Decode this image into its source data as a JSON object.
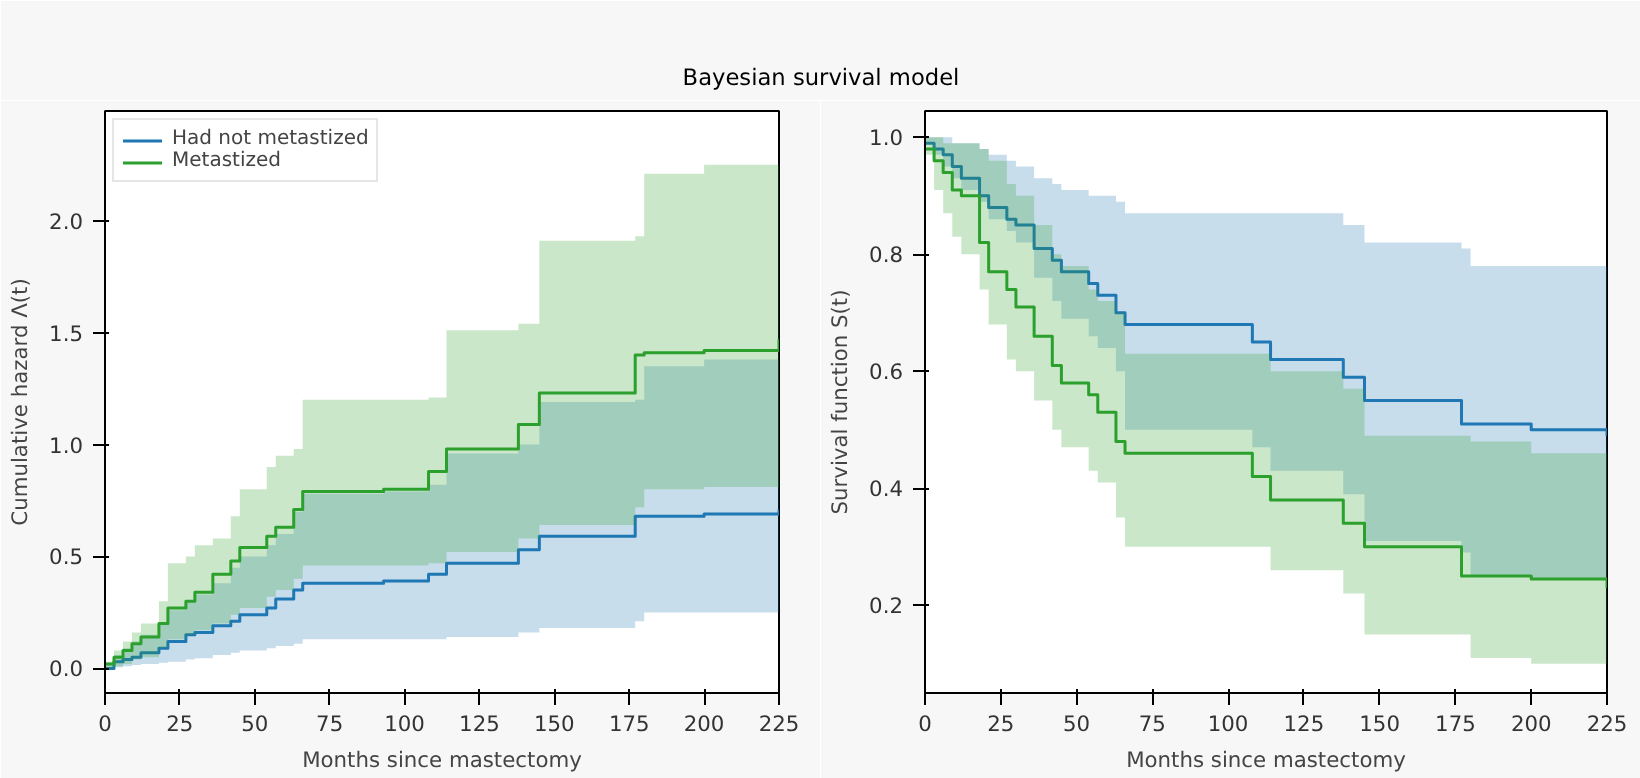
{
  "chart_data": [
    {
      "type": "step",
      "title": "Bayesian survival model",
      "xlabel": "Months since mastectomy",
      "ylabel": "Cumulative hazard Λ(t)",
      "x": [
        0,
        3,
        6,
        9,
        12,
        18,
        21,
        27,
        30,
        36,
        42,
        45,
        54,
        57,
        63,
        66,
        93,
        108,
        114,
        138,
        145,
        177,
        180,
        200,
        225
      ],
      "xlim": [
        0,
        225
      ],
      "xticks": [
        0,
        25,
        50,
        75,
        100,
        125,
        150,
        175,
        200,
        225
      ],
      "ylim": [
        -0.11,
        2.49
      ],
      "yticks": [
        {
          "value": 0,
          "label": "0.0"
        },
        0.5,
        {
          "value": 1,
          "label": "1.0"
        },
        1.5,
        {
          "value": 2,
          "label": "2.0"
        }
      ],
      "grid": false,
      "legend": "top left",
      "series": [
        {
          "name": "Had not metastized",
          "color": "#1f77b4",
          "values": [
            0.0,
            0.03,
            0.04,
            0.05,
            0.07,
            0.09,
            0.12,
            0.15,
            0.16,
            0.19,
            0.21,
            0.24,
            0.27,
            0.31,
            0.35,
            0.38,
            0.39,
            0.42,
            0.47,
            0.53,
            0.59,
            0.68,
            0.68,
            0.69,
            0.71
          ],
          "lower": [
            0,
            0.005,
            0.01,
            0.015,
            0.02,
            0.025,
            0.03,
            0.04,
            0.045,
            0.06,
            0.07,
            0.08,
            0.09,
            0.1,
            0.11,
            0.13,
            0.13,
            0.13,
            0.14,
            0.16,
            0.18,
            0.21,
            0.25,
            0.25,
            0.25
          ],
          "upper": [
            0.02,
            0.06,
            0.09,
            0.12,
            0.15,
            0.2,
            0.26,
            0.3,
            0.33,
            0.38,
            0.45,
            0.5,
            0.55,
            0.6,
            0.7,
            0.78,
            0.79,
            0.82,
            0.96,
            1.0,
            1.19,
            1.2,
            1.35,
            1.38,
            1.43
          ]
        },
        {
          "name": "Metastized",
          "color": "#2ca02c",
          "values": [
            0.02,
            0.05,
            0.08,
            0.11,
            0.14,
            0.2,
            0.27,
            0.3,
            0.34,
            0.42,
            0.48,
            0.54,
            0.59,
            0.63,
            0.71,
            0.79,
            0.8,
            0.88,
            0.98,
            1.09,
            1.23,
            1.4,
            1.41,
            1.42,
            1.47
          ],
          "lower": [
            0,
            0.01,
            0.02,
            0.04,
            0.05,
            0.09,
            0.13,
            0.15,
            0.17,
            0.2,
            0.24,
            0.27,
            0.32,
            0.35,
            0.4,
            0.46,
            0.46,
            0.47,
            0.52,
            0.58,
            0.64,
            0.72,
            0.8,
            0.81,
            0.82
          ],
          "upper": [
            0.03,
            0.08,
            0.12,
            0.16,
            0.2,
            0.3,
            0.47,
            0.5,
            0.55,
            0.58,
            0.68,
            0.8,
            0.9,
            0.95,
            0.98,
            1.2,
            1.2,
            1.21,
            1.51,
            1.54,
            1.91,
            1.93,
            2.21,
            2.25,
            2.37
          ]
        }
      ]
    },
    {
      "type": "step",
      "xlabel": "Months since mastectomy",
      "ylabel": "Survival function S(t)",
      "x": [
        0,
        3,
        6,
        9,
        12,
        18,
        21,
        27,
        30,
        36,
        42,
        45,
        54,
        57,
        63,
        66,
        93,
        108,
        114,
        138,
        145,
        177,
        180,
        200,
        225
      ],
      "xlim": [
        0,
        225
      ],
      "xticks": [
        0,
        25,
        50,
        75,
        100,
        125,
        150,
        175,
        200,
        225
      ],
      "ylim": [
        0.05,
        1.045
      ],
      "yticks": [
        0.2,
        0.4,
        0.6,
        0.8,
        {
          "value": 1,
          "label": "1.0"
        }
      ],
      "grid": false,
      "legend": false,
      "series": [
        {
          "color": "#1f77b4",
          "values": [
            0.99,
            0.98,
            0.97,
            0.95,
            0.93,
            0.9,
            0.88,
            0.86,
            0.85,
            0.81,
            0.79,
            0.77,
            0.75,
            0.73,
            0.7,
            0.68,
            0.68,
            0.65,
            0.62,
            0.59,
            0.55,
            0.51,
            0.51,
            0.5,
            0.49
          ],
          "lower": [
            0.99,
            0.97,
            0.95,
            0.93,
            0.91,
            0.89,
            0.86,
            0.84,
            0.82,
            0.76,
            0.72,
            0.69,
            0.66,
            0.64,
            0.6,
            0.5,
            0.5,
            0.47,
            0.43,
            0.39,
            0.31,
            0.29,
            0.25,
            0.245,
            0.24
          ],
          "upper": [
            1.0,
            1.0,
            1.0,
            0.99,
            0.99,
            0.98,
            0.97,
            0.96,
            0.95,
            0.93,
            0.92,
            0.91,
            0.9,
            0.9,
            0.89,
            0.87,
            0.87,
            0.87,
            0.87,
            0.85,
            0.82,
            0.81,
            0.78,
            0.78,
            0.775
          ]
        },
        {
          "color": "#2ca02c",
          "values": [
            0.98,
            0.96,
            0.94,
            0.91,
            0.9,
            0.82,
            0.77,
            0.74,
            0.71,
            0.66,
            0.61,
            0.58,
            0.56,
            0.53,
            0.48,
            0.46,
            0.46,
            0.42,
            0.38,
            0.34,
            0.3,
            0.25,
            0.25,
            0.245,
            0.23
          ],
          "lower": [
            0.97,
            0.91,
            0.87,
            0.83,
            0.8,
            0.74,
            0.68,
            0.62,
            0.6,
            0.55,
            0.5,
            0.47,
            0.43,
            0.41,
            0.35,
            0.3,
            0.3,
            0.3,
            0.26,
            0.22,
            0.15,
            0.15,
            0.11,
            0.1,
            0.095
          ],
          "upper": [
            1.0,
            1.0,
            0.99,
            0.99,
            0.99,
            0.98,
            0.96,
            0.92,
            0.9,
            0.85,
            0.8,
            0.78,
            0.74,
            0.72,
            0.7,
            0.63,
            0.63,
            0.63,
            0.6,
            0.57,
            0.49,
            0.49,
            0.48,
            0.46,
            0.44
          ]
        }
      ]
    }
  ]
}
